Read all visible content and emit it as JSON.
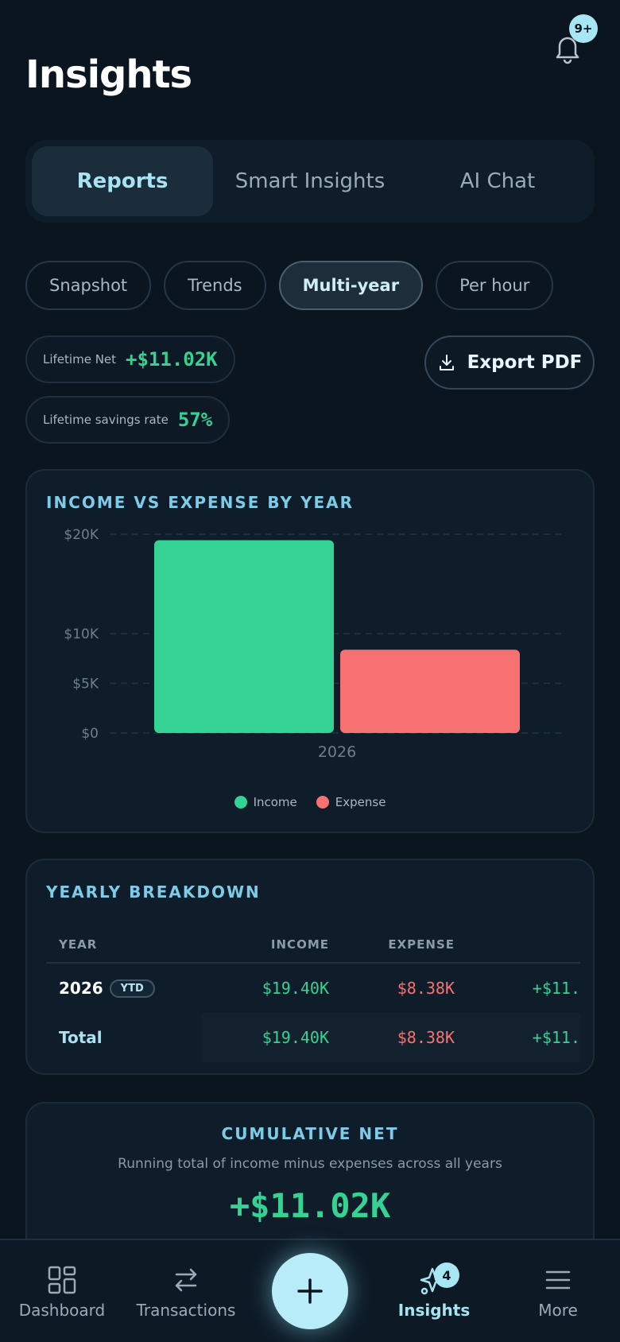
{
  "header": {
    "title": "Insights",
    "notification_badge": "9+"
  },
  "tabs": [
    {
      "label": "Reports",
      "active": true
    },
    {
      "label": "Smart Insights",
      "active": false
    },
    {
      "label": "AI Chat",
      "active": false
    }
  ],
  "chips": [
    {
      "label": "Snapshot",
      "active": false
    },
    {
      "label": "Trends",
      "active": false
    },
    {
      "label": "Multi-year",
      "active": true
    },
    {
      "label": "Per hour",
      "active": false
    }
  ],
  "stats": {
    "lifetime_net_label": "Lifetime Net",
    "lifetime_net_value": "+$11.02K",
    "savings_label": "Lifetime savings rate",
    "savings_value": "57%"
  },
  "export_label": "Export PDF",
  "chart_data": {
    "type": "bar",
    "title": "INCOME VS EXPENSE BY YEAR",
    "categories": [
      "2026"
    ],
    "series": [
      {
        "name": "Income",
        "values": [
          19400
        ],
        "color": "#35d393"
      },
      {
        "name": "Expense",
        "values": [
          8380
        ],
        "color": "#f87171"
      }
    ],
    "yticks": [
      0,
      5000,
      10000,
      20000
    ],
    "ytick_labels": [
      "$0",
      "$5K",
      "$10K",
      "$20K"
    ],
    "ylim": [
      0,
      20000
    ],
    "grid": true,
    "legend": "bottom-center"
  },
  "breakdown": {
    "title": "YEARLY BREAKDOWN",
    "headers": {
      "year": "YEAR",
      "income": "INCOME",
      "expense": "EXPENSE"
    },
    "rows": [
      {
        "year": "2026",
        "badge": "YTD",
        "income": "$19.40K",
        "expense": "$8.38K",
        "net": "+$11."
      }
    ],
    "total": {
      "label": "Total",
      "income": "$19.40K",
      "expense": "$8.38K",
      "net": "+$11."
    }
  },
  "cumulative": {
    "title": "CUMULATIVE NET",
    "subtitle": "Running total of income minus expenses across all years",
    "value": "+$11.02K"
  },
  "nav": [
    {
      "label": "Dashboard",
      "icon": "dashboard-icon",
      "active": false
    },
    {
      "label": "Transactions",
      "icon": "transfer-icon",
      "active": false
    },
    {
      "label": "Insights",
      "icon": "insights-icon",
      "active": true,
      "badge": "4"
    },
    {
      "label": "More",
      "icon": "menu-icon",
      "active": false
    }
  ]
}
